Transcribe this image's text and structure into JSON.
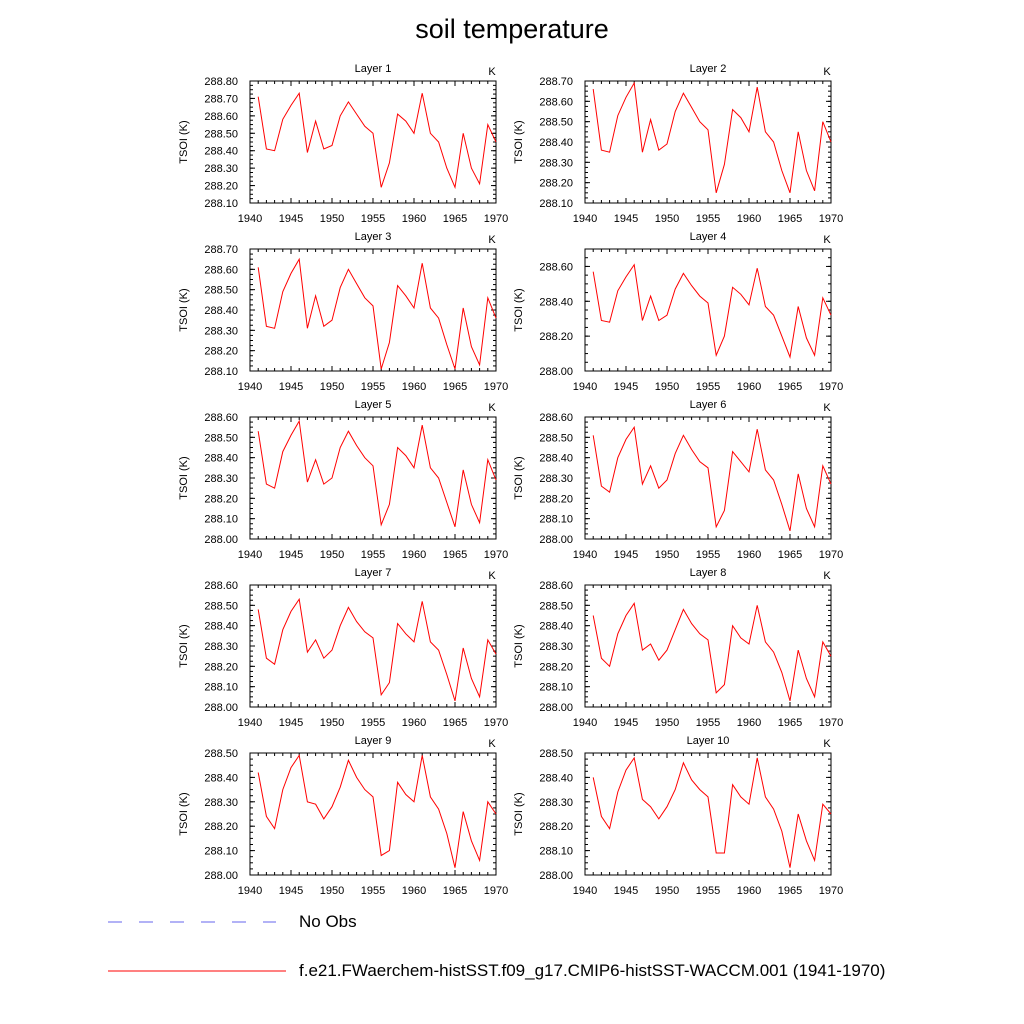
{
  "title": "soil temperature",
  "chart_data": [
    {
      "type": "line",
      "panel": "Layer 1",
      "unit": "K",
      "ylabel": "TSOI  (K)",
      "xlim": [
        1940,
        1970
      ],
      "ylim": [
        288.1,
        288.8
      ],
      "xticks": [
        1940,
        1945,
        1950,
        1955,
        1960,
        1965,
        1970
      ],
      "yticks": [
        "288.10",
        "288.20",
        "288.30",
        "288.40",
        "288.50",
        "288.60",
        "288.70",
        "288.80"
      ],
      "x": [
        1941,
        1942,
        1943,
        1944,
        1945,
        1946,
        1947,
        1948,
        1949,
        1950,
        1951,
        1952,
        1953,
        1954,
        1955,
        1956,
        1957,
        1958,
        1959,
        1960,
        1961,
        1962,
        1963,
        1964,
        1965,
        1966,
        1967,
        1968,
        1969,
        1970
      ],
      "series": [
        {
          "name": "f.e21.FWaerchem-histSST.f09_g17.CMIP6-histSST-WACCM.001 (1941-1970)",
          "color": "#ff0000",
          "values": [
            288.71,
            288.41,
            288.4,
            288.58,
            288.66,
            288.73,
            288.39,
            288.57,
            288.41,
            288.43,
            288.6,
            288.68,
            288.61,
            288.54,
            288.5,
            288.19,
            288.33,
            288.61,
            288.57,
            288.5,
            288.73,
            288.5,
            288.45,
            288.3,
            288.19,
            288.5,
            288.3,
            288.21,
            288.55,
            288.45
          ]
        }
      ]
    },
    {
      "type": "line",
      "panel": "Layer 2",
      "unit": "K",
      "ylabel": "TSOI  (K)",
      "xlim": [
        1940,
        1970
      ],
      "ylim": [
        288.1,
        288.7
      ],
      "xticks": [
        1940,
        1945,
        1950,
        1955,
        1960,
        1965,
        1970
      ],
      "yticks": [
        "288.10",
        "288.20",
        "288.30",
        "288.40",
        "288.50",
        "288.60",
        "288.70"
      ],
      "x": [
        1941,
        1942,
        1943,
        1944,
        1945,
        1946,
        1947,
        1948,
        1949,
        1950,
        1951,
        1952,
        1953,
        1954,
        1955,
        1956,
        1957,
        1958,
        1959,
        1960,
        1961,
        1962,
        1963,
        1964,
        1965,
        1966,
        1967,
        1968,
        1969,
        1970
      ],
      "series": [
        {
          "name": "f.e21.FWaerchem-histSST.f09_g17.CMIP6-histSST-WACCM.001 (1941-1970)",
          "color": "#ff0000",
          "values": [
            288.66,
            288.36,
            288.35,
            288.53,
            288.62,
            288.69,
            288.35,
            288.51,
            288.36,
            288.39,
            288.55,
            288.64,
            288.57,
            288.5,
            288.46,
            288.15,
            288.29,
            288.56,
            288.52,
            288.45,
            288.67,
            288.45,
            288.4,
            288.26,
            288.15,
            288.45,
            288.26,
            288.16,
            288.5,
            288.4
          ]
        }
      ]
    },
    {
      "type": "line",
      "panel": "Layer 3",
      "unit": "K",
      "ylabel": "TSOI  (K)",
      "xlim": [
        1940,
        1970
      ],
      "ylim": [
        288.1,
        288.7
      ],
      "xticks": [
        1940,
        1945,
        1950,
        1955,
        1960,
        1965,
        1970
      ],
      "yticks": [
        "288.10",
        "288.20",
        "288.30",
        "288.40",
        "288.50",
        "288.60",
        "288.70"
      ],
      "x": [
        1941,
        1942,
        1943,
        1944,
        1945,
        1946,
        1947,
        1948,
        1949,
        1950,
        1951,
        1952,
        1953,
        1954,
        1955,
        1956,
        1957,
        1958,
        1959,
        1960,
        1961,
        1962,
        1963,
        1964,
        1965,
        1966,
        1967,
        1968,
        1969,
        1970
      ],
      "series": [
        {
          "name": "f.e21.FWaerchem-histSST.f09_g17.CMIP6-histSST-WACCM.001 (1941-1970)",
          "color": "#ff0000",
          "values": [
            288.61,
            288.32,
            288.31,
            288.49,
            288.58,
            288.65,
            288.31,
            288.47,
            288.32,
            288.35,
            288.51,
            288.6,
            288.53,
            288.46,
            288.42,
            288.11,
            288.24,
            288.52,
            288.47,
            288.41,
            288.63,
            288.41,
            288.36,
            288.23,
            288.11,
            288.41,
            288.22,
            288.13,
            288.46,
            288.36
          ]
        }
      ]
    },
    {
      "type": "line",
      "panel": "Layer 4",
      "unit": "K",
      "ylabel": "TSOI  (K)",
      "xlim": [
        1940,
        1970
      ],
      "ylim": [
        288.0,
        288.7
      ],
      "xticks": [
        1940,
        1945,
        1950,
        1955,
        1960,
        1965,
        1970
      ],
      "yticks": [
        "288.00",
        "288.20",
        "288.40",
        "288.60"
      ],
      "x": [
        1941,
        1942,
        1943,
        1944,
        1945,
        1946,
        1947,
        1948,
        1949,
        1950,
        1951,
        1952,
        1953,
        1954,
        1955,
        1956,
        1957,
        1958,
        1959,
        1960,
        1961,
        1962,
        1963,
        1964,
        1965,
        1966,
        1967,
        1968,
        1969,
        1970
      ],
      "series": [
        {
          "name": "f.e21.FWaerchem-histSST.f09_g17.CMIP6-histSST-WACCM.001 (1941-1970)",
          "color": "#ff0000",
          "values": [
            288.57,
            288.29,
            288.28,
            288.46,
            288.54,
            288.61,
            288.29,
            288.43,
            288.29,
            288.32,
            288.47,
            288.56,
            288.49,
            288.43,
            288.39,
            288.09,
            288.2,
            288.48,
            288.44,
            288.38,
            288.59,
            288.37,
            288.32,
            288.2,
            288.08,
            288.37,
            288.19,
            288.09,
            288.42,
            288.32
          ]
        }
      ]
    },
    {
      "type": "line",
      "panel": "Layer 5",
      "unit": "K",
      "ylabel": "TSOI  (K)",
      "xlim": [
        1940,
        1970
      ],
      "ylim": [
        288.0,
        288.6
      ],
      "xticks": [
        1940,
        1945,
        1950,
        1955,
        1960,
        1965,
        1970
      ],
      "yticks": [
        "288.00",
        "288.10",
        "288.20",
        "288.30",
        "288.40",
        "288.50",
        "288.60"
      ],
      "x": [
        1941,
        1942,
        1943,
        1944,
        1945,
        1946,
        1947,
        1948,
        1949,
        1950,
        1951,
        1952,
        1953,
        1954,
        1955,
        1956,
        1957,
        1958,
        1959,
        1960,
        1961,
        1962,
        1963,
        1964,
        1965,
        1966,
        1967,
        1968,
        1969,
        1970
      ],
      "series": [
        {
          "name": "f.e21.FWaerchem-histSST.f09_g17.CMIP6-histSST-WACCM.001 (1941-1970)",
          "color": "#ff0000",
          "values": [
            288.53,
            288.27,
            288.25,
            288.43,
            288.51,
            288.58,
            288.28,
            288.39,
            288.27,
            288.3,
            288.45,
            288.53,
            288.46,
            288.4,
            288.36,
            288.07,
            288.17,
            288.45,
            288.41,
            288.35,
            288.56,
            288.35,
            288.3,
            288.18,
            288.06,
            288.34,
            288.17,
            288.08,
            288.39,
            288.29
          ]
        }
      ]
    },
    {
      "type": "line",
      "panel": "Layer 6",
      "unit": "K",
      "ylabel": "TSOI  (K)",
      "xlim": [
        1940,
        1970
      ],
      "ylim": [
        288.0,
        288.6
      ],
      "xticks": [
        1940,
        1945,
        1950,
        1955,
        1960,
        1965,
        1970
      ],
      "yticks": [
        "288.00",
        "288.10",
        "288.20",
        "288.30",
        "288.40",
        "288.50",
        "288.60"
      ],
      "x": [
        1941,
        1942,
        1943,
        1944,
        1945,
        1946,
        1947,
        1948,
        1949,
        1950,
        1951,
        1952,
        1953,
        1954,
        1955,
        1956,
        1957,
        1958,
        1959,
        1960,
        1961,
        1962,
        1963,
        1964,
        1965,
        1966,
        1967,
        1968,
        1969,
        1970
      ],
      "series": [
        {
          "name": "f.e21.FWaerchem-histSST.f09_g17.CMIP6-histSST-WACCM.001 (1941-1970)",
          "color": "#ff0000",
          "values": [
            288.51,
            288.26,
            288.23,
            288.4,
            288.49,
            288.55,
            288.27,
            288.36,
            288.25,
            288.29,
            288.42,
            288.51,
            288.44,
            288.38,
            288.35,
            288.06,
            288.14,
            288.43,
            288.38,
            288.33,
            288.54,
            288.34,
            288.29,
            288.17,
            288.04,
            288.32,
            288.15,
            288.06,
            288.36,
            288.27
          ]
        }
      ]
    },
    {
      "type": "line",
      "panel": "Layer 7",
      "unit": "K",
      "ylabel": "TSOI  (K)",
      "xlim": [
        1940,
        1970
      ],
      "ylim": [
        288.0,
        288.6
      ],
      "xticks": [
        1940,
        1945,
        1950,
        1955,
        1960,
        1965,
        1970
      ],
      "yticks": [
        "288.00",
        "288.10",
        "288.20",
        "288.30",
        "288.40",
        "288.50",
        "288.60"
      ],
      "x": [
        1941,
        1942,
        1943,
        1944,
        1945,
        1946,
        1947,
        1948,
        1949,
        1950,
        1951,
        1952,
        1953,
        1954,
        1955,
        1956,
        1957,
        1958,
        1959,
        1960,
        1961,
        1962,
        1963,
        1964,
        1965,
        1966,
        1967,
        1968,
        1969,
        1970
      ],
      "series": [
        {
          "name": "f.e21.FWaerchem-histSST.f09_g17.CMIP6-histSST-WACCM.001 (1941-1970)",
          "color": "#ff0000",
          "values": [
            288.48,
            288.24,
            288.21,
            288.38,
            288.47,
            288.53,
            288.27,
            288.33,
            288.24,
            288.28,
            288.4,
            288.49,
            288.42,
            288.37,
            288.34,
            288.06,
            288.12,
            288.41,
            288.36,
            288.32,
            288.52,
            288.32,
            288.28,
            288.16,
            288.03,
            288.29,
            288.14,
            288.05,
            288.33,
            288.26
          ]
        }
      ]
    },
    {
      "type": "line",
      "panel": "Layer 8",
      "unit": "K",
      "ylabel": "TSOI  (K)",
      "xlim": [
        1940,
        1970
      ],
      "ylim": [
        288.0,
        288.6
      ],
      "xticks": [
        1940,
        1945,
        1950,
        1955,
        1960,
        1965,
        1970
      ],
      "yticks": [
        "288.00",
        "288.10",
        "288.20",
        "288.30",
        "288.40",
        "288.50",
        "288.60"
      ],
      "x": [
        1941,
        1942,
        1943,
        1944,
        1945,
        1946,
        1947,
        1948,
        1949,
        1950,
        1951,
        1952,
        1953,
        1954,
        1955,
        1956,
        1957,
        1958,
        1959,
        1960,
        1961,
        1962,
        1963,
        1964,
        1965,
        1966,
        1967,
        1968,
        1969,
        1970
      ],
      "series": [
        {
          "name": "f.e21.FWaerchem-histSST.f09_g17.CMIP6-histSST-WACCM.001 (1941-1970)",
          "color": "#ff0000",
          "values": [
            288.45,
            288.24,
            288.2,
            288.36,
            288.45,
            288.51,
            288.28,
            288.31,
            288.23,
            288.28,
            288.38,
            288.48,
            288.41,
            288.36,
            288.33,
            288.07,
            288.11,
            288.4,
            288.34,
            288.31,
            288.5,
            288.32,
            288.27,
            288.17,
            288.03,
            288.28,
            288.14,
            288.05,
            288.32,
            288.25
          ]
        }
      ]
    },
    {
      "type": "line",
      "panel": "Layer 9",
      "unit": "K",
      "ylabel": "TSOI  (K)",
      "xlim": [
        1940,
        1970
      ],
      "ylim": [
        288.0,
        288.5
      ],
      "xticks": [
        1940,
        1945,
        1950,
        1955,
        1960,
        1965,
        1970
      ],
      "yticks": [
        "288.00",
        "288.10",
        "288.20",
        "288.30",
        "288.40",
        "288.50"
      ],
      "x": [
        1941,
        1942,
        1943,
        1944,
        1945,
        1946,
        1947,
        1948,
        1949,
        1950,
        1951,
        1952,
        1953,
        1954,
        1955,
        1956,
        1957,
        1958,
        1959,
        1960,
        1961,
        1962,
        1963,
        1964,
        1965,
        1966,
        1967,
        1968,
        1969,
        1970
      ],
      "series": [
        {
          "name": "f.e21.FWaerchem-histSST.f09_g17.CMIP6-histSST-WACCM.001 (1941-1970)",
          "color": "#ff0000",
          "values": [
            288.42,
            288.24,
            288.19,
            288.35,
            288.44,
            288.49,
            288.3,
            288.29,
            288.23,
            288.28,
            288.36,
            288.47,
            288.4,
            288.35,
            288.32,
            288.08,
            288.1,
            288.38,
            288.33,
            288.3,
            288.49,
            288.32,
            288.27,
            288.17,
            288.03,
            288.26,
            288.14,
            288.06,
            288.3,
            288.25
          ]
        }
      ]
    },
    {
      "type": "line",
      "panel": "Layer 10",
      "unit": "K",
      "ylabel": "TSOI  (K)",
      "xlim": [
        1940,
        1970
      ],
      "ylim": [
        288.0,
        288.5
      ],
      "xticks": [
        1940,
        1945,
        1950,
        1955,
        1960,
        1965,
        1970
      ],
      "yticks": [
        "288.00",
        "288.10",
        "288.20",
        "288.30",
        "288.40",
        "288.50"
      ],
      "x": [
        1941,
        1942,
        1943,
        1944,
        1945,
        1946,
        1947,
        1948,
        1949,
        1950,
        1951,
        1952,
        1953,
        1954,
        1955,
        1956,
        1957,
        1958,
        1959,
        1960,
        1961,
        1962,
        1963,
        1964,
        1965,
        1966,
        1967,
        1968,
        1969,
        1970
      ],
      "series": [
        {
          "name": "f.e21.FWaerchem-histSST.f09_g17.CMIP6-histSST-WACCM.001 (1941-1970)",
          "color": "#ff0000",
          "values": [
            288.4,
            288.24,
            288.19,
            288.34,
            288.43,
            288.48,
            288.31,
            288.28,
            288.23,
            288.28,
            288.35,
            288.46,
            288.39,
            288.35,
            288.32,
            288.09,
            288.09,
            288.37,
            288.32,
            288.29,
            288.48,
            288.32,
            288.27,
            288.18,
            288.03,
            288.25,
            288.14,
            288.06,
            288.29,
            288.25
          ]
        }
      ]
    }
  ],
  "legend": {
    "entries": [
      {
        "label": "No Obs",
        "color": "#6666ee",
        "style": "dashed"
      },
      {
        "label": "f.e21.FWaerchem-histSST.f09_g17.CMIP6-histSST-WACCM.001 (1941-1970)",
        "color": "#ff0000",
        "style": "solid"
      }
    ]
  }
}
